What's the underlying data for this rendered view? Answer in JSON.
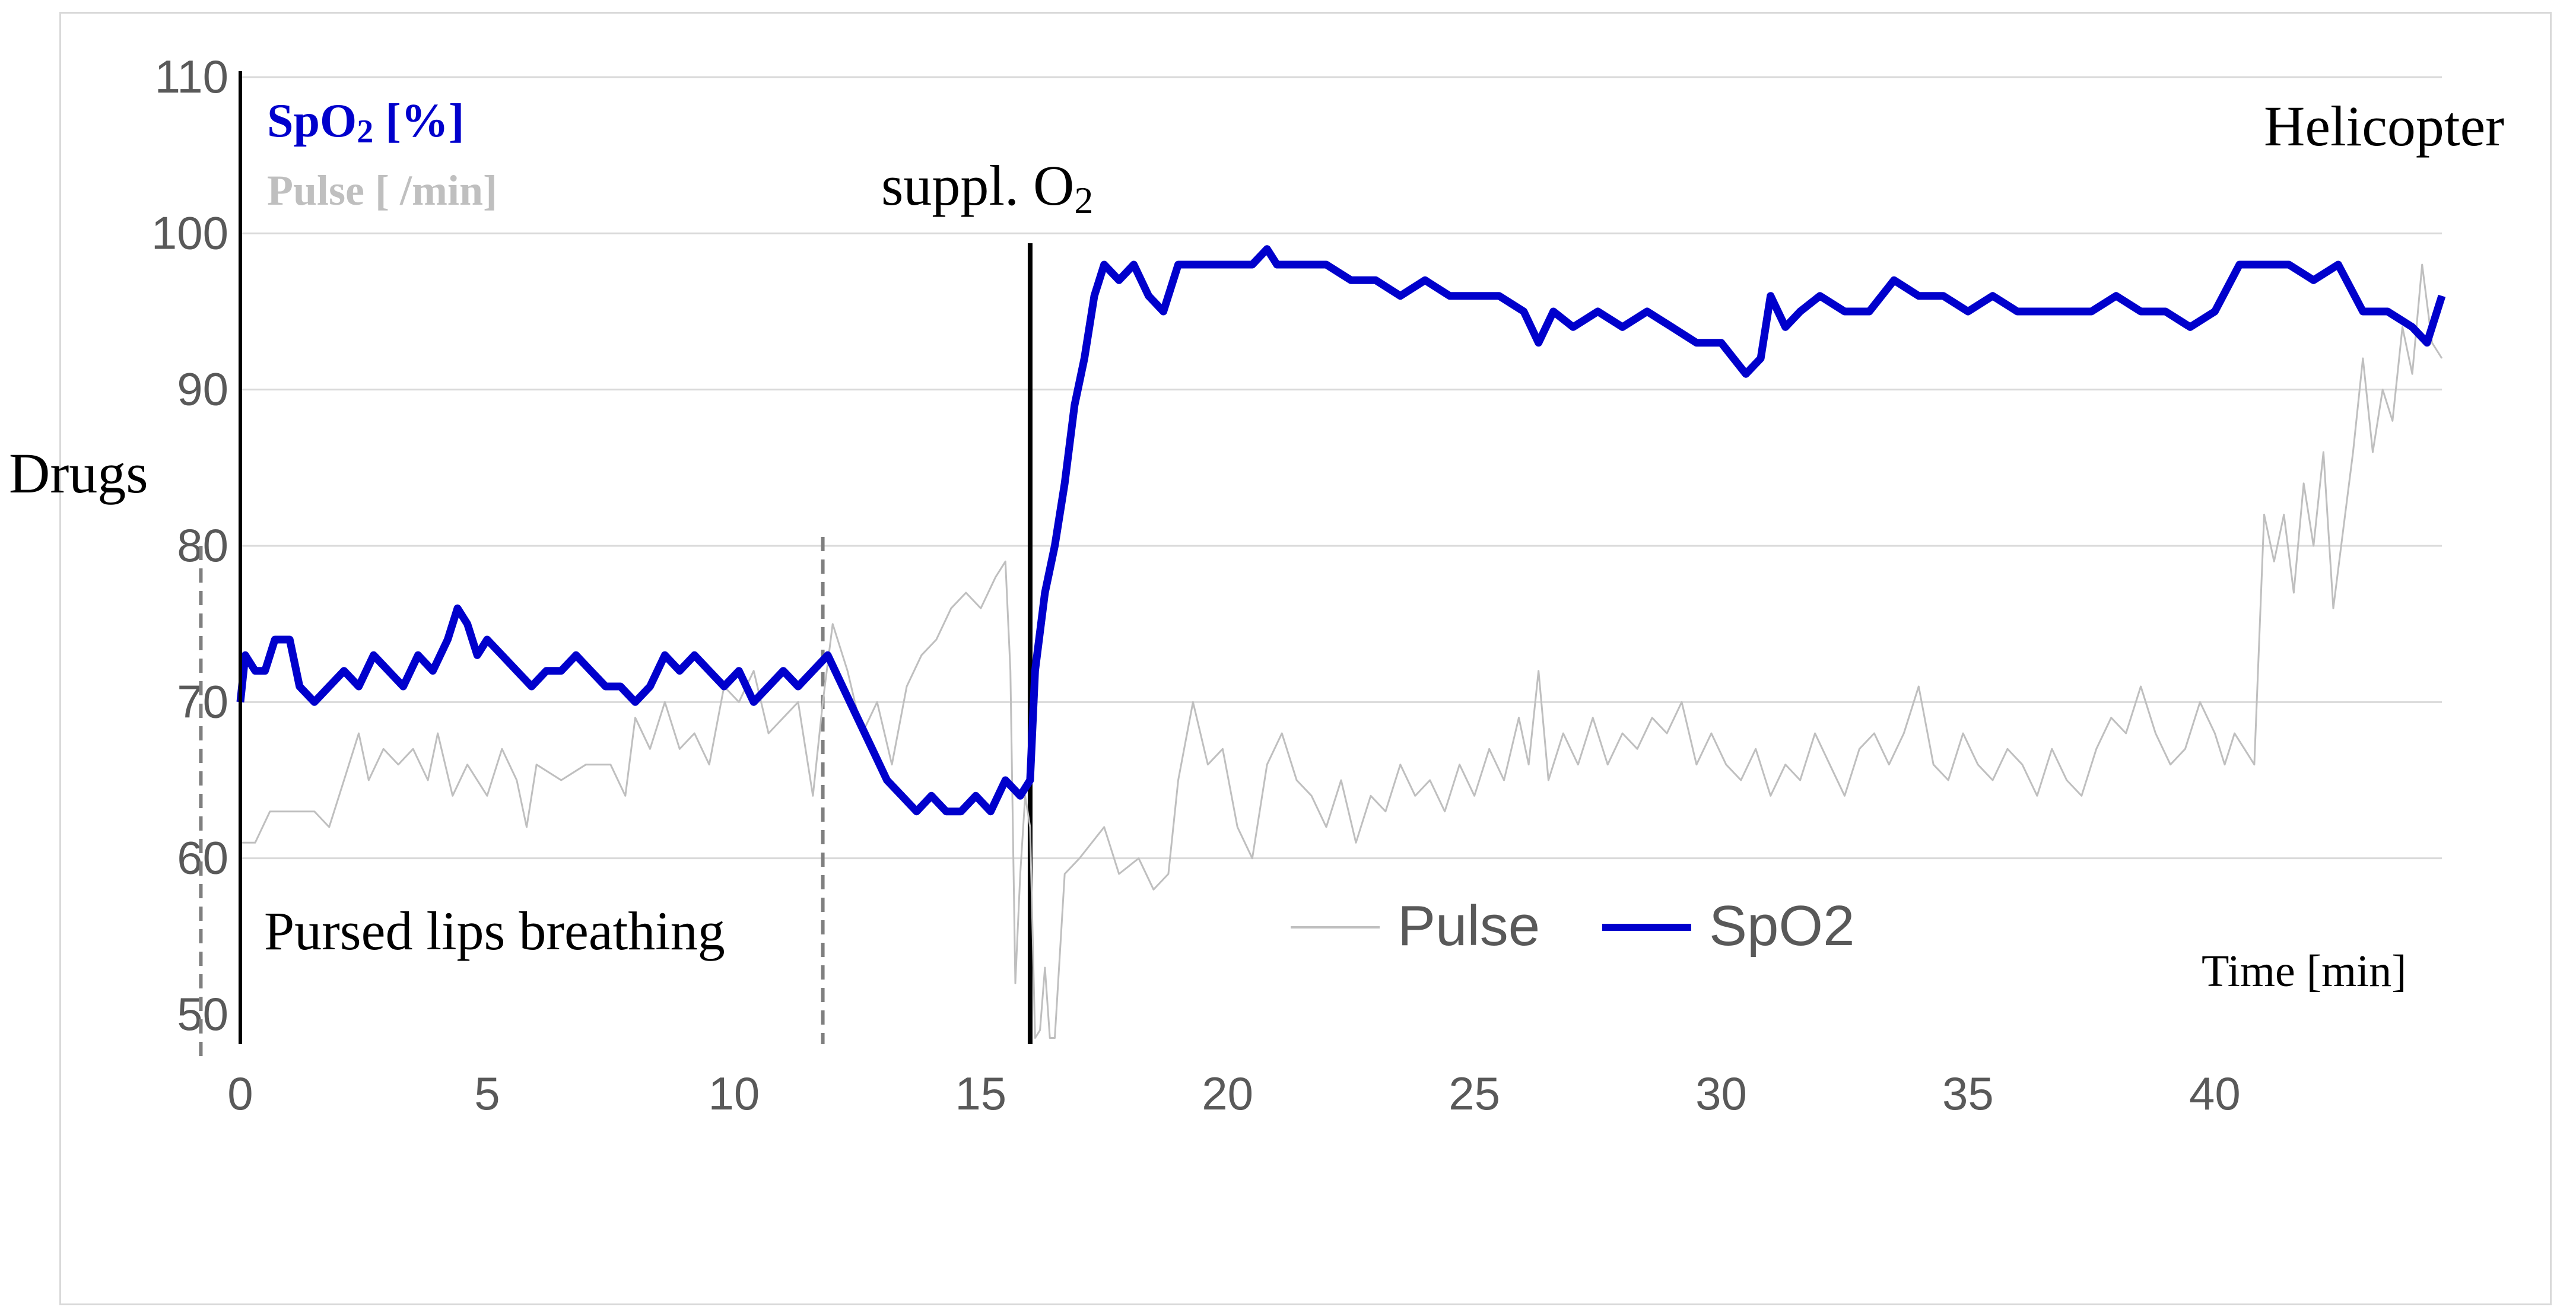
{
  "chart_data": {
    "type": "line",
    "xlabel": "Time [min]",
    "ylim": [
      50,
      110
    ],
    "xlim": [
      0,
      44.6
    ],
    "y_ticks": [
      50,
      60,
      70,
      80,
      90,
      100,
      110
    ],
    "x_ticks": [
      0,
      5,
      10,
      15,
      20,
      25,
      30,
      35,
      40
    ],
    "grid": "horizontal",
    "legend_position": "bottom-right",
    "axis_titles": {
      "spo2": {
        "main": "SpO",
        "sub": "2",
        "unit": " [%]"
      },
      "pulse": "Pulse [ /min]"
    },
    "annotations": [
      {
        "id": "drugs",
        "text": "Drugs",
        "x": -0.8,
        "style": "dashed"
      },
      {
        "id": "pursed",
        "text": "Pursed lips breathing",
        "x": 11.8,
        "style": "dashed"
      },
      {
        "id": "o2",
        "text": "suppl. O",
        "sub": "2",
        "x": 16.0,
        "style": "solid"
      },
      {
        "id": "heli",
        "text": "Helicopter"
      }
    ],
    "colors": {
      "spo2": "#0000cc",
      "pulse": "#bfbfbf",
      "grid": "#d9d9d9",
      "axis_text": "#595959"
    },
    "series": [
      {
        "name": "Pulse",
        "color": "#bfbfbf",
        "points": [
          [
            0,
            61
          ],
          [
            0.3,
            61
          ],
          [
            0.6,
            63
          ],
          [
            1,
            63
          ],
          [
            1.5,
            63
          ],
          [
            1.8,
            62
          ],
          [
            2,
            64
          ],
          [
            2.2,
            66
          ],
          [
            2.4,
            68
          ],
          [
            2.6,
            65
          ],
          [
            2.9,
            67
          ],
          [
            3.2,
            66
          ],
          [
            3.5,
            67
          ],
          [
            3.8,
            65
          ],
          [
            4,
            68
          ],
          [
            4.3,
            64
          ],
          [
            4.6,
            66
          ],
          [
            5,
            64
          ],
          [
            5.3,
            67
          ],
          [
            5.6,
            65
          ],
          [
            5.8,
            62
          ],
          [
            6,
            66
          ],
          [
            6.5,
            65
          ],
          [
            7,
            66
          ],
          [
            7.5,
            66
          ],
          [
            7.8,
            64
          ],
          [
            8,
            69
          ],
          [
            8.3,
            67
          ],
          [
            8.6,
            70
          ],
          [
            8.9,
            67
          ],
          [
            9.2,
            68
          ],
          [
            9.5,
            66
          ],
          [
            9.8,
            71
          ],
          [
            10.1,
            70
          ],
          [
            10.4,
            72
          ],
          [
            10.7,
            68
          ],
          [
            11,
            69
          ],
          [
            11.3,
            70
          ],
          [
            11.6,
            64
          ],
          [
            11.8,
            70
          ],
          [
            12,
            75
          ],
          [
            12.3,
            72
          ],
          [
            12.6,
            68
          ],
          [
            12.9,
            70
          ],
          [
            13.2,
            66
          ],
          [
            13.5,
            71
          ],
          [
            13.8,
            73
          ],
          [
            14.1,
            74
          ],
          [
            14.4,
            76
          ],
          [
            14.7,
            77
          ],
          [
            15,
            76
          ],
          [
            15.3,
            78
          ],
          [
            15.5,
            79
          ],
          [
            15.6,
            72
          ],
          [
            15.7,
            52
          ],
          [
            15.8,
            59
          ],
          [
            15.9,
            64
          ],
          [
            16,
            62
          ],
          [
            16.1,
            42
          ],
          [
            16.2,
            49
          ],
          [
            16.3,
            53
          ],
          [
            16.4,
            46
          ],
          [
            16.5,
            41
          ],
          [
            16.7,
            59
          ],
          [
            17,
            60
          ],
          [
            17.5,
            62
          ],
          [
            17.8,
            59
          ],
          [
            18.2,
            60
          ],
          [
            18.5,
            58
          ],
          [
            18.8,
            59
          ],
          [
            19,
            65
          ],
          [
            19.3,
            70
          ],
          [
            19.6,
            66
          ],
          [
            19.9,
            67
          ],
          [
            20.2,
            62
          ],
          [
            20.5,
            60
          ],
          [
            20.8,
            66
          ],
          [
            21.1,
            68
          ],
          [
            21.4,
            65
          ],
          [
            21.7,
            64
          ],
          [
            22,
            62
          ],
          [
            22.3,
            65
          ],
          [
            22.6,
            61
          ],
          [
            22.9,
            64
          ],
          [
            23.2,
            63
          ],
          [
            23.5,
            66
          ],
          [
            23.8,
            64
          ],
          [
            24.1,
            65
          ],
          [
            24.4,
            63
          ],
          [
            24.7,
            66
          ],
          [
            25,
            64
          ],
          [
            25.3,
            67
          ],
          [
            25.6,
            65
          ],
          [
            25.9,
            69
          ],
          [
            26.1,
            66
          ],
          [
            26.3,
            72
          ],
          [
            26.5,
            65
          ],
          [
            26.8,
            68
          ],
          [
            27.1,
            66
          ],
          [
            27.4,
            69
          ],
          [
            27.7,
            66
          ],
          [
            28,
            68
          ],
          [
            28.3,
            67
          ],
          [
            28.6,
            69
          ],
          [
            28.9,
            68
          ],
          [
            29.2,
            70
          ],
          [
            29.5,
            66
          ],
          [
            29.8,
            68
          ],
          [
            30.1,
            66
          ],
          [
            30.4,
            65
          ],
          [
            30.7,
            67
          ],
          [
            31,
            64
          ],
          [
            31.3,
            66
          ],
          [
            31.6,
            65
          ],
          [
            31.9,
            68
          ],
          [
            32.2,
            66
          ],
          [
            32.5,
            64
          ],
          [
            32.8,
            67
          ],
          [
            33.1,
            68
          ],
          [
            33.4,
            66
          ],
          [
            33.7,
            68
          ],
          [
            34,
            71
          ],
          [
            34.3,
            66
          ],
          [
            34.6,
            65
          ],
          [
            34.9,
            68
          ],
          [
            35.2,
            66
          ],
          [
            35.5,
            65
          ],
          [
            35.8,
            67
          ],
          [
            36.1,
            66
          ],
          [
            36.4,
            64
          ],
          [
            36.7,
            67
          ],
          [
            37,
            65
          ],
          [
            37.3,
            64
          ],
          [
            37.6,
            67
          ],
          [
            37.9,
            69
          ],
          [
            38.2,
            68
          ],
          [
            38.5,
            71
          ],
          [
            38.8,
            68
          ],
          [
            39.1,
            66
          ],
          [
            39.4,
            67
          ],
          [
            39.7,
            70
          ],
          [
            40,
            68
          ],
          [
            40.2,
            66
          ],
          [
            40.4,
            68
          ],
          [
            40.6,
            67
          ],
          [
            40.8,
            66
          ],
          [
            41,
            82
          ],
          [
            41.2,
            79
          ],
          [
            41.4,
            82
          ],
          [
            41.6,
            77
          ],
          [
            41.8,
            84
          ],
          [
            42,
            80
          ],
          [
            42.2,
            86
          ],
          [
            42.4,
            76
          ],
          [
            42.6,
            81
          ],
          [
            42.8,
            86
          ],
          [
            43,
            92
          ],
          [
            43.2,
            86
          ],
          [
            43.4,
            90
          ],
          [
            43.6,
            88
          ],
          [
            43.8,
            94
          ],
          [
            44,
            91
          ],
          [
            44.2,
            98
          ],
          [
            44.4,
            93
          ],
          [
            44.6,
            92
          ]
        ]
      },
      {
        "name": "SpO2",
        "color": "#0000cc",
        "points": [
          [
            0,
            70
          ],
          [
            0.1,
            73
          ],
          [
            0.3,
            72
          ],
          [
            0.5,
            72
          ],
          [
            0.7,
            74
          ],
          [
            1,
            74
          ],
          [
            1.2,
            71
          ],
          [
            1.5,
            70
          ],
          [
            1.8,
            71
          ],
          [
            2.1,
            72
          ],
          [
            2.4,
            71
          ],
          [
            2.7,
            73
          ],
          [
            3,
            72
          ],
          [
            3.3,
            71
          ],
          [
            3.6,
            73
          ],
          [
            3.9,
            72
          ],
          [
            4.2,
            74
          ],
          [
            4.4,
            76
          ],
          [
            4.6,
            75
          ],
          [
            4.8,
            73
          ],
          [
            5,
            74
          ],
          [
            5.3,
            73
          ],
          [
            5.6,
            72
          ],
          [
            5.9,
            71
          ],
          [
            6.2,
            72
          ],
          [
            6.5,
            72
          ],
          [
            6.8,
            73
          ],
          [
            7.1,
            72
          ],
          [
            7.4,
            71
          ],
          [
            7.7,
            71
          ],
          [
            8,
            70
          ],
          [
            8.3,
            71
          ],
          [
            8.6,
            73
          ],
          [
            8.9,
            72
          ],
          [
            9.2,
            73
          ],
          [
            9.5,
            72
          ],
          [
            9.8,
            71
          ],
          [
            10.1,
            72
          ],
          [
            10.4,
            70
          ],
          [
            10.7,
            71
          ],
          [
            11,
            72
          ],
          [
            11.3,
            71
          ],
          [
            11.6,
            72
          ],
          [
            11.9,
            73
          ],
          [
            12.2,
            71
          ],
          [
            12.5,
            69
          ],
          [
            12.8,
            67
          ],
          [
            13.1,
            65
          ],
          [
            13.4,
            64
          ],
          [
            13.7,
            63
          ],
          [
            14,
            64
          ],
          [
            14.3,
            63
          ],
          [
            14.6,
            63
          ],
          [
            14.9,
            64
          ],
          [
            15.2,
            63
          ],
          [
            15.5,
            65
          ],
          [
            15.8,
            64
          ],
          [
            16,
            65
          ],
          [
            16.1,
            72
          ],
          [
            16.3,
            77
          ],
          [
            16.5,
            80
          ],
          [
            16.7,
            84
          ],
          [
            16.9,
            89
          ],
          [
            17.1,
            92
          ],
          [
            17.3,
            96
          ],
          [
            17.5,
            98
          ],
          [
            17.8,
            97
          ],
          [
            18.1,
            98
          ],
          [
            18.4,
            96
          ],
          [
            18.7,
            95
          ],
          [
            19,
            98
          ],
          [
            19.5,
            98
          ],
          [
            20,
            98
          ],
          [
            20.5,
            98
          ],
          [
            20.8,
            99
          ],
          [
            21,
            98
          ],
          [
            21.5,
            98
          ],
          [
            22,
            98
          ],
          [
            22.5,
            97
          ],
          [
            23,
            97
          ],
          [
            23.5,
            96
          ],
          [
            24,
            97
          ],
          [
            24.5,
            96
          ],
          [
            25,
            96
          ],
          [
            25.5,
            96
          ],
          [
            26,
            95
          ],
          [
            26.3,
            93
          ],
          [
            26.6,
            95
          ],
          [
            27,
            94
          ],
          [
            27.5,
            95
          ],
          [
            28,
            94
          ],
          [
            28.5,
            95
          ],
          [
            29,
            94
          ],
          [
            29.5,
            93
          ],
          [
            30,
            93
          ],
          [
            30.5,
            91
          ],
          [
            30.8,
            92
          ],
          [
            31,
            96
          ],
          [
            31.3,
            94
          ],
          [
            31.6,
            95
          ],
          [
            32,
            96
          ],
          [
            32.5,
            95
          ],
          [
            33,
            95
          ],
          [
            33.5,
            97
          ],
          [
            34,
            96
          ],
          [
            34.5,
            96
          ],
          [
            35,
            95
          ],
          [
            35.5,
            96
          ],
          [
            36,
            95
          ],
          [
            36.5,
            95
          ],
          [
            37,
            95
          ],
          [
            37.5,
            95
          ],
          [
            38,
            96
          ],
          [
            38.5,
            95
          ],
          [
            39,
            95
          ],
          [
            39.5,
            94
          ],
          [
            40,
            95
          ],
          [
            40.5,
            98
          ],
          [
            41,
            98
          ],
          [
            41.5,
            98
          ],
          [
            42,
            97
          ],
          [
            42.5,
            98
          ],
          [
            43,
            95
          ],
          [
            43.5,
            95
          ],
          [
            44,
            94
          ],
          [
            44.3,
            93
          ],
          [
            44.6,
            96
          ]
        ]
      }
    ]
  }
}
